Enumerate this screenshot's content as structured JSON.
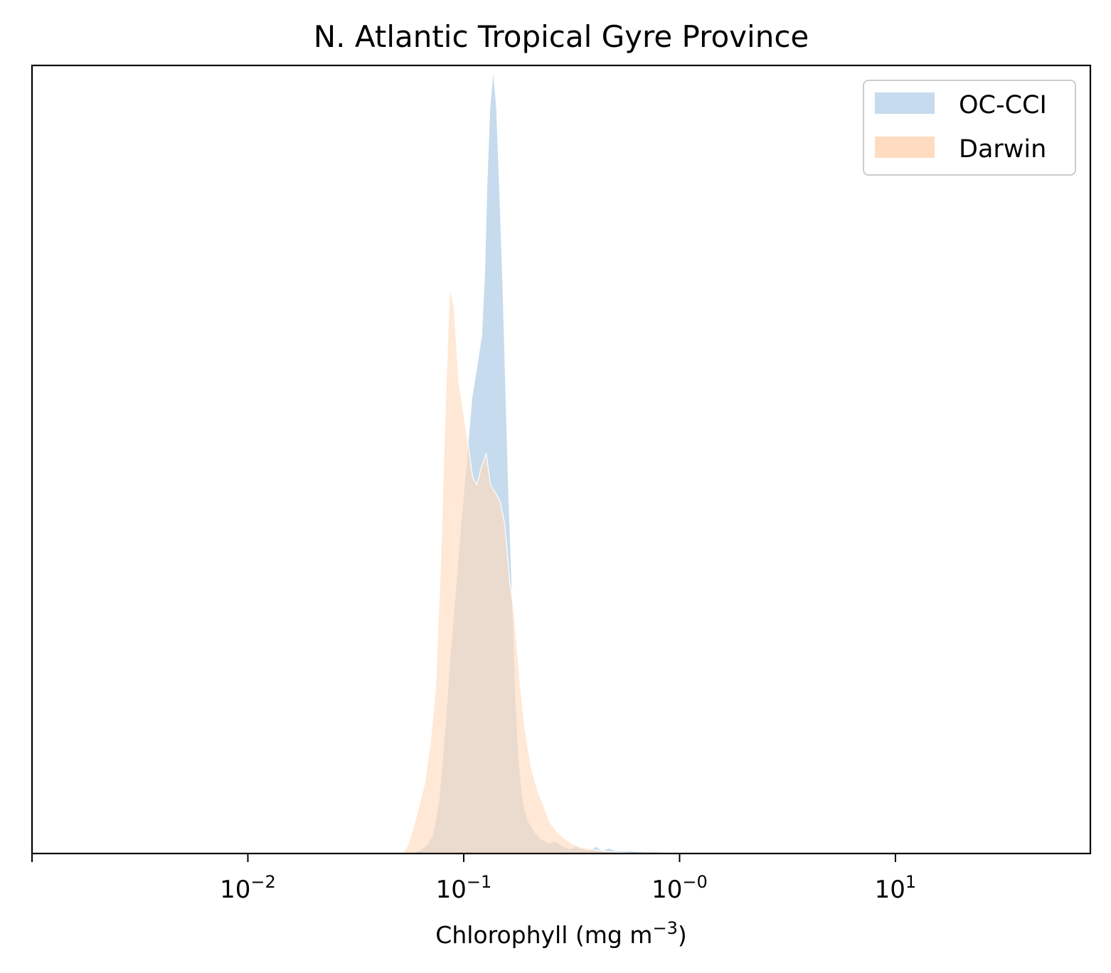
{
  "chart_data": {
    "type": "area",
    "title": "N. Atlantic Tropical Gyre Province",
    "xlabel": "Chlorophyll  (mg m",
    "xlabel_sup": "−3",
    "xlabel_suffix": ")",
    "ylabel": "",
    "x_scale": "log",
    "xlim": [
      0.001,
      80
    ],
    "ylim": [
      0,
      1.0
    ],
    "y_ticks_visible": false,
    "grid": false,
    "legend_position": "top-right",
    "x_ticks": [
      {
        "value": 0.001,
        "base": "",
        "exp": ""
      },
      {
        "value": 0.01,
        "base": "10",
        "exp": "−2"
      },
      {
        "value": 0.1,
        "base": "10",
        "exp": "−1"
      },
      {
        "value": 1,
        "base": "10",
        "exp": "−0"
      },
      {
        "value": 10,
        "base": "10",
        "exp": "1"
      }
    ],
    "series": [
      {
        "name": "OC-CCI",
        "color": "#c6dbed",
        "x": [
          0.058,
          0.063,
          0.068,
          0.072,
          0.077,
          0.082,
          0.087,
          0.092,
          0.097,
          0.103,
          0.109,
          0.115,
          0.121,
          0.125,
          0.128,
          0.132,
          0.137,
          0.142,
          0.147,
          0.152,
          0.157,
          0.162,
          0.168,
          0.174,
          0.18,
          0.186,
          0.192,
          0.2,
          0.215,
          0.23,
          0.248,
          0.265,
          0.285,
          0.31,
          0.33,
          0.355,
          0.38,
          0.41,
          0.44,
          0.47,
          0.5,
          0.55,
          0.6,
          0.7,
          0.8,
          0.9,
          1.0,
          1.2,
          1.5,
          2.0,
          3.0,
          4.0
        ],
        "y": [
          0.0,
          0.005,
          0.012,
          0.025,
          0.07,
          0.16,
          0.26,
          0.34,
          0.42,
          0.5,
          0.58,
          0.62,
          0.66,
          0.74,
          0.85,
          0.95,
          1.0,
          0.95,
          0.84,
          0.72,
          0.58,
          0.45,
          0.33,
          0.2,
          0.12,
          0.08,
          0.055,
          0.04,
          0.026,
          0.018,
          0.013,
          0.016,
          0.01,
          0.006,
          0.009,
          0.006,
          0.004,
          0.009,
          0.004,
          0.007,
          0.004,
          0.003,
          0.003,
          0.002,
          0.002,
          0.001,
          0.001,
          0.001,
          0.0005,
          0.0004,
          0.0003,
          0.0
        ]
      },
      {
        "name": "Darwin",
        "color": "#ffdcbf",
        "x": [
          0.052,
          0.055,
          0.058,
          0.062,
          0.066,
          0.07,
          0.074,
          0.078,
          0.082,
          0.086,
          0.09,
          0.095,
          0.1,
          0.105,
          0.11,
          0.115,
          0.12,
          0.127,
          0.133,
          0.14,
          0.147,
          0.155,
          0.163,
          0.172,
          0.182,
          0.192,
          0.205,
          0.22,
          0.235,
          0.25,
          0.27,
          0.29,
          0.32,
          0.35,
          0.4,
          0.45,
          0.5,
          0.6
        ],
        "y": [
          0.0,
          0.01,
          0.03,
          0.06,
          0.09,
          0.14,
          0.21,
          0.36,
          0.56,
          0.72,
          0.7,
          0.6,
          0.56,
          0.52,
          0.48,
          0.47,
          0.49,
          0.51,
          0.47,
          0.46,
          0.45,
          0.42,
          0.35,
          0.3,
          0.22,
          0.16,
          0.11,
          0.08,
          0.06,
          0.04,
          0.028,
          0.02,
          0.012,
          0.008,
          0.005,
          0.003,
          0.002,
          0.0
        ]
      }
    ]
  }
}
